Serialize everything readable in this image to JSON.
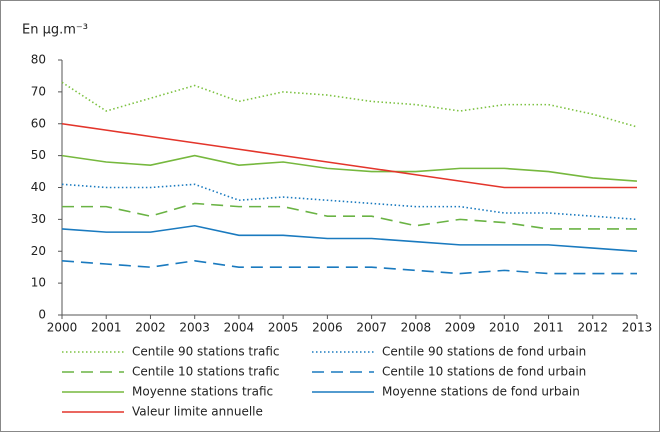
{
  "chart_data": {
    "type": "line",
    "title": "En µg.m⁻³",
    "x": [
      2000,
      2001,
      2002,
      2003,
      2004,
      2005,
      2006,
      2007,
      2008,
      2009,
      2010,
      2011,
      2012,
      2013
    ],
    "xlim": [
      2000,
      2013
    ],
    "xticks": [
      2000,
      2001,
      2002,
      2003,
      2004,
      2005,
      2006,
      2007,
      2008,
      2009,
      2010,
      2011,
      2012,
      2013
    ],
    "ylim": [
      0,
      80
    ],
    "yticks": [
      0,
      10,
      20,
      30,
      40,
      50,
      60,
      70,
      80
    ],
    "grid": false,
    "series": [
      {
        "name": "Centile 90 stations trafic",
        "color": "#7dc242",
        "dash": "dotted",
        "values": [
          73,
          64,
          68,
          72,
          67,
          70,
          69,
          67,
          66,
          64,
          66,
          66,
          63,
          59
        ]
      },
      {
        "name": "Centile 90 stations de fond urbain",
        "color": "#1a7abf",
        "dash": "dotted",
        "values": [
          41,
          40,
          40,
          41,
          36,
          37,
          36,
          35,
          34,
          34,
          32,
          32,
          31,
          30
        ]
      },
      {
        "name": "Centile 10 stations trafic",
        "color": "#6ab344",
        "dash": "dashed",
        "values": [
          34,
          34,
          31,
          35,
          34,
          34,
          31,
          31,
          28,
          30,
          29,
          27,
          27,
          27
        ]
      },
      {
        "name": "Centile 10 stations de fond urbain",
        "color": "#1a7abf",
        "dash": "dashed",
        "values": [
          17,
          16,
          15,
          17,
          15,
          15,
          15,
          15,
          14,
          13,
          14,
          13,
          13,
          13
        ]
      },
      {
        "name": "Moyenne stations trafic",
        "color": "#76b83e",
        "dash": "solid",
        "values": [
          50,
          48,
          47,
          50,
          47,
          48,
          46,
          45,
          45,
          46,
          46,
          45,
          43,
          42
        ]
      },
      {
        "name": "Moyenne stations de fond urbain",
        "color": "#1a7abf",
        "dash": "solid",
        "values": [
          27,
          26,
          26,
          28,
          25,
          25,
          24,
          24,
          23,
          22,
          22,
          22,
          21,
          20
        ]
      },
      {
        "name": "Valeur limite annuelle",
        "color": "#e3352b",
        "dash": "solid",
        "values": [
          60,
          58,
          56,
          54,
          52,
          50,
          48,
          46,
          44,
          42,
          40,
          40,
          40,
          40
        ]
      }
    ]
  }
}
